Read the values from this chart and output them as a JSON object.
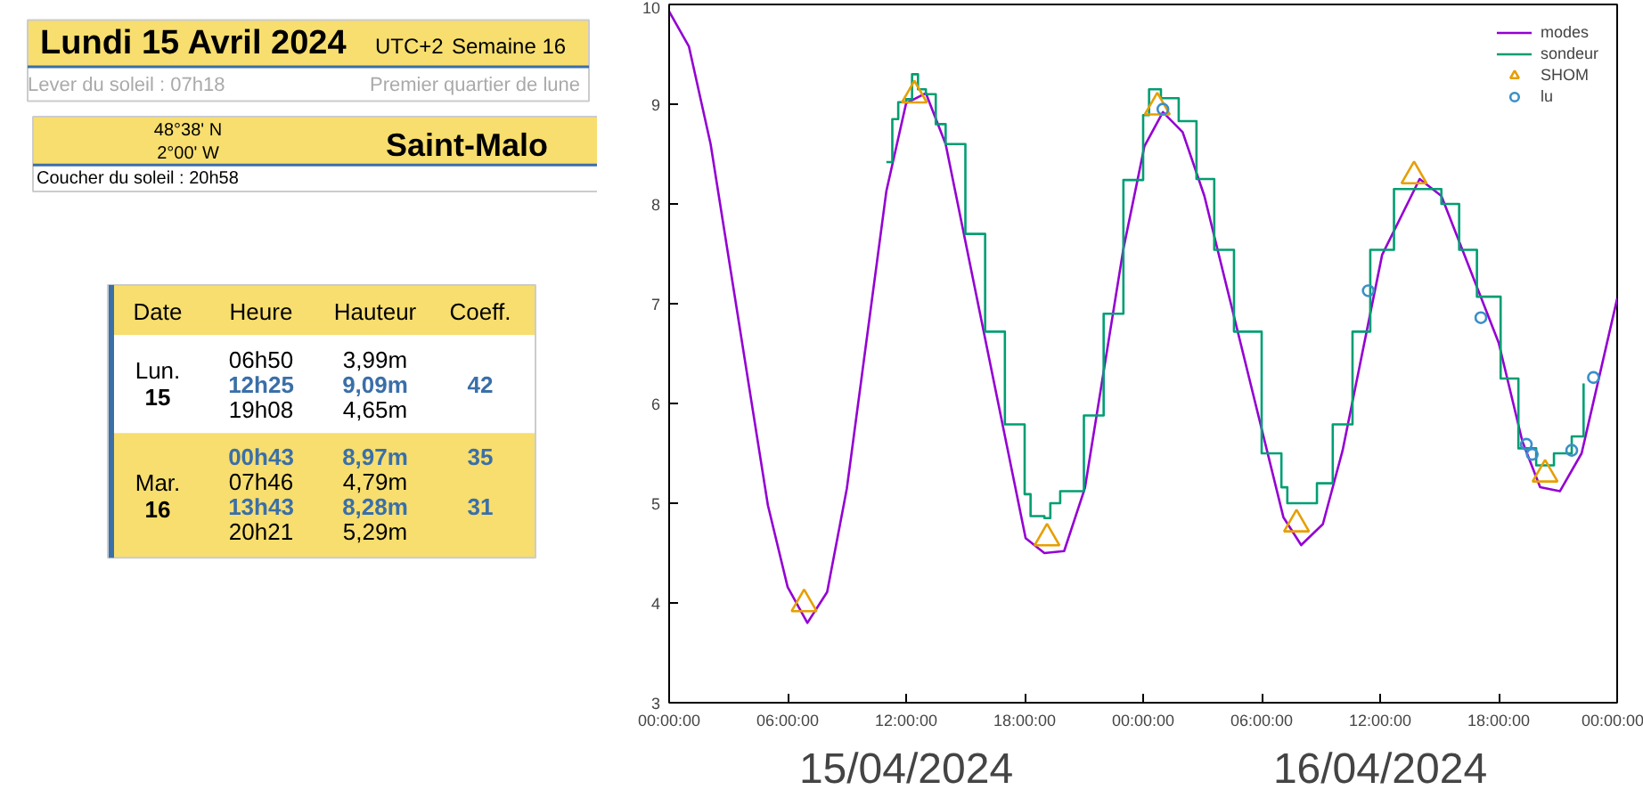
{
  "chart_data": [
    {
      "type": "other",
      "title": "Lundi 15 Avril 2024",
      "annotations": [
        "UTC+2",
        "Semaine 16",
        "Lever du soleil : 07h18",
        "Premier quartier de lune",
        "48°38' N",
        "2°00' W",
        "Saint-Malo",
        "Coucher du soleil : 20h58",
        "Date",
        "Heure",
        "Hauteur",
        "Coeff.",
        "Lun.",
        "15",
        "06h50",
        "3,99m",
        "12h25",
        "9,09m",
        "42",
        "19h08",
        "4,65m",
        "Mar.",
        "16",
        "00h43",
        "8,97m",
        "35",
        "07h46",
        "4,79m",
        "13h43",
        "8,28m",
        "31",
        "20h21",
        "5,29m"
      ]
    },
    {
      "type": "line",
      "xlim": [
        "2024-04-15T00:00",
        "2024-04-17T00:00"
      ],
      "ylim": [
        3,
        10
      ],
      "xticks": [
        {
          "value": "2024-04-15T00:00",
          "label": "00:00:00"
        },
        {
          "value": "2024-04-15T06:00",
          "label": "06:00:00"
        },
        {
          "value": "2024-04-15T12:00",
          "label": "12:00:00"
        },
        {
          "value": "2024-04-15T18:00",
          "label": "18:00:00"
        },
        {
          "value": "2024-04-16T00:00",
          "label": "00:00:00"
        },
        {
          "value": "2024-04-16T06:00",
          "label": "06:00:00"
        },
        {
          "value": "2024-04-16T12:00",
          "label": "12:00:00"
        },
        {
          "value": "2024-04-16T18:00",
          "label": "18:00:00"
        },
        {
          "value": "2024-04-17T00:00",
          "label": "00:00:00"
        }
      ],
      "yticks": [
        3,
        4,
        5,
        6,
        7,
        8,
        9,
        10
      ],
      "grid": false,
      "legend": "top right",
      "annotations": [
        "15/04/2024",
        "16/04/2024"
      ],
      "series": [
        {
          "name": "modes",
          "type": "line",
          "color": "#9400d3",
          "x": [
            "2024-04-15T00:00",
            "2024-04-15T01:00",
            "2024-04-15T02:06",
            "2024-04-15T05:00",
            "2024-04-15T06:00",
            "2024-04-15T07:00",
            "2024-04-15T08:00",
            "2024-04-15T09:00",
            "2024-04-15T11:00",
            "2024-04-15T12:00",
            "2024-04-15T13:00",
            "2024-04-15T14:00",
            "2024-04-15T18:03",
            "2024-04-15T19:00",
            "2024-04-15T20:00",
            "2024-04-15T21:03",
            "2024-04-15T23:00",
            "2024-04-16T00:04",
            "2024-04-16T01:00",
            "2024-04-16T02:00",
            "2024-04-16T03:06",
            "2024-04-16T07:06",
            "2024-04-16T08:00",
            "2024-04-16T09:06",
            "2024-04-16T10:06",
            "2024-04-16T12:06",
            "2024-04-16T14:00",
            "2024-04-16T15:06",
            "2024-04-16T18:00",
            "2024-04-16T19:12",
            "2024-04-16T20:06",
            "2024-04-16T21:06",
            "2024-04-16T22:12",
            "2024-04-17T00:00"
          ],
          "values": [
            9.93,
            9.58,
            8.6,
            4.98,
            4.16,
            3.8,
            4.11,
            5.15,
            8.13,
            9.01,
            9.11,
            8.6,
            4.65,
            4.5,
            4.52,
            5.15,
            7.55,
            8.58,
            8.92,
            8.72,
            8.08,
            4.86,
            4.58,
            4.79,
            5.53,
            7.49,
            8.25,
            8.08,
            6.61,
            5.62,
            5.16,
            5.12,
            5.5,
            7.05
          ]
        },
        {
          "name": "sondeur",
          "type": "step",
          "color": "#009e73",
          "x": [
            "2024-04-15T11:00",
            "2024-04-15T11:18",
            "2024-04-15T11:36",
            "2024-04-15T12:00",
            "2024-04-15T12:18",
            "2024-04-15T12:36",
            "2024-04-15T13:00",
            "2024-04-15T13:30",
            "2024-04-15T14:00",
            "2024-04-15T15:00",
            "2024-04-15T16:00",
            "2024-04-15T17:00",
            "2024-04-15T18:00",
            "2024-04-15T18:18",
            "2024-04-15T19:00",
            "2024-04-15T19:18",
            "2024-04-15T19:48",
            "2024-04-15T21:00",
            "2024-04-15T22:00",
            "2024-04-15T23:00",
            "2024-04-16T00:00",
            "2024-04-16T00:18",
            "2024-04-16T00:54",
            "2024-04-16T01:48",
            "2024-04-16T02:42",
            "2024-04-16T03:36",
            "2024-04-16T04:36",
            "2024-04-16T06:00",
            "2024-04-16T07:00",
            "2024-04-16T07:18",
            "2024-04-16T08:12",
            "2024-04-16T08:48",
            "2024-04-16T09:36",
            "2024-04-16T10:36",
            "2024-04-16T11:30",
            "2024-04-16T12:42",
            "2024-04-16T13:00",
            "2024-04-16T14:30",
            "2024-04-16T15:06",
            "2024-04-16T16:00",
            "2024-04-16T16:54",
            "2024-04-16T18:06",
            "2024-04-16T19:00",
            "2024-04-16T19:54",
            "2024-04-16T20:48",
            "2024-04-16T21:42",
            "2024-04-16T22:18"
          ],
          "values": [
            8.42,
            8.85,
            9.02,
            9.05,
            9.3,
            9.15,
            9.1,
            8.8,
            8.6,
            7.7,
            6.72,
            5.79,
            5.09,
            4.87,
            4.85,
            5.0,
            5.12,
            5.88,
            6.9,
            8.24,
            8.89,
            9.15,
            9.06,
            8.83,
            8.25,
            7.54,
            6.72,
            5.5,
            5.16,
            5.0,
            5.0,
            5.2,
            5.79,
            6.72,
            7.54,
            8.15,
            8.15,
            8.15,
            8.0,
            7.54,
            7.07,
            6.25,
            5.55,
            5.38,
            5.5,
            5.67,
            6.2
          ]
        },
        {
          "name": "SHOM",
          "type": "scatter",
          "marker": "triangle",
          "color": "#e69f00",
          "x": [
            "2024-04-15T06:50",
            "2024-04-15T12:25",
            "2024-04-15T19:08",
            "2024-04-16T00:43",
            "2024-04-16T07:46",
            "2024-04-16T13:43",
            "2024-04-16T20:21"
          ],
          "values": [
            3.99,
            9.09,
            4.65,
            8.97,
            4.79,
            8.28,
            5.29
          ]
        },
        {
          "name": "lu",
          "type": "scatter",
          "marker": "circle",
          "color": "#3a8fc8",
          "x": [
            "2024-04-16T01:00",
            "2024-04-16T11:24",
            "2024-04-16T17:06",
            "2024-04-16T19:24",
            "2024-04-16T19:42",
            "2024-04-16T21:42",
            "2024-04-16T22:48"
          ],
          "values": [
            8.95,
            7.13,
            6.86,
            5.59,
            5.49,
            5.53,
            6.26
          ]
        }
      ]
    }
  ]
}
